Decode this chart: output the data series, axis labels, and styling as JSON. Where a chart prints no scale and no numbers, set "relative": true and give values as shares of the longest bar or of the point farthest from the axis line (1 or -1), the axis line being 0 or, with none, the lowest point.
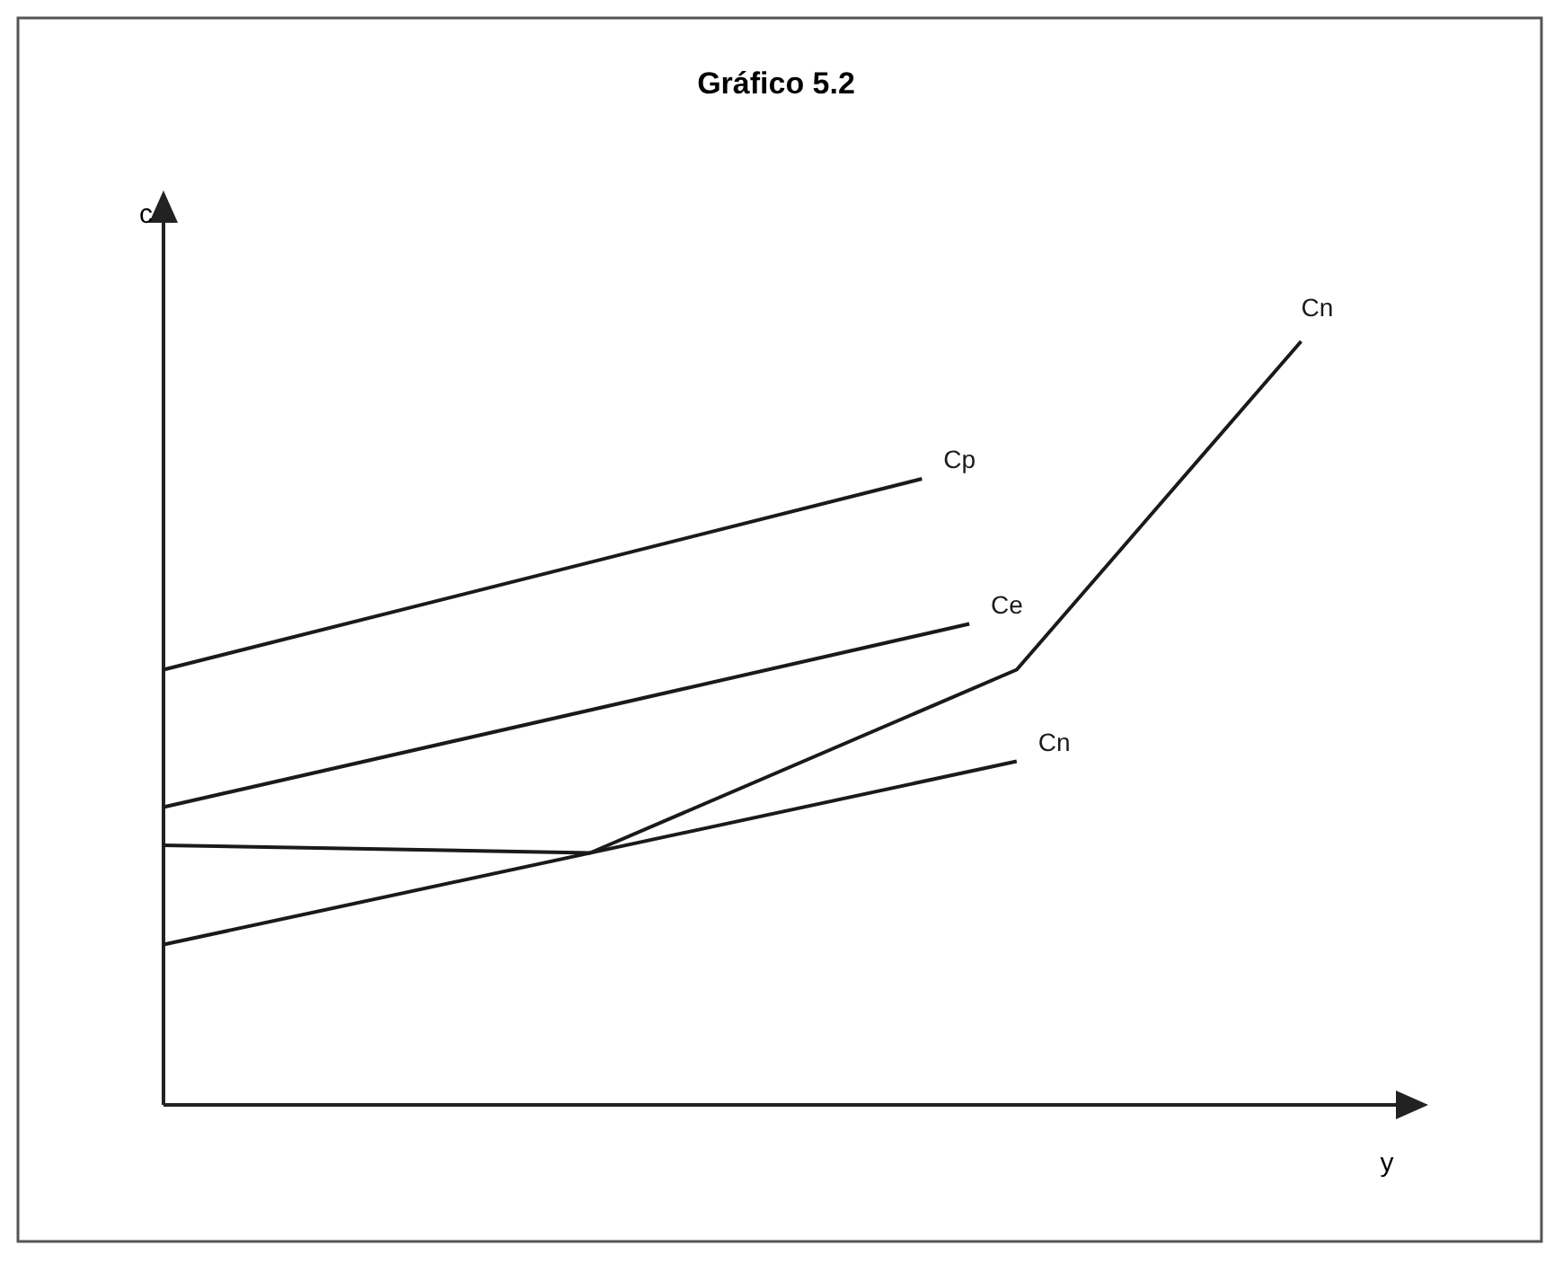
{
  "chart_data": {
    "type": "line",
    "title": "Gráfico 5.2",
    "xlabel": "y",
    "ylabel": "c",
    "relative": true,
    "legend": false,
    "line_style": "solid",
    "categories": [
      null,
      null,
      null,
      null,
      null,
      null,
      null,
      null,
      null,
      null,
      null,
      null,
      null,
      null,
      null,
      null,
      null,
      null,
      null,
      null,
      null,
      null,
      null,
      null,
      null
    ],
    "series": [
      {
        "name": "Cp",
        "color": "#1a1a1a",
        "values": [
          0.57,
          null,
          null,
          null,
          null,
          null,
          null,
          null,
          null,
          null,
          null,
          null,
          null,
          null,
          null,
          null,
          0.82,
          null,
          null,
          null,
          null,
          null,
          null,
          null,
          null
        ]
      },
      {
        "name": "Ce",
        "color": "#1a1a1a",
        "values": [
          0.39,
          null,
          null,
          null,
          null,
          null,
          null,
          null,
          null,
          null,
          null,
          null,
          null,
          null,
          null,
          null,
          null,
          0.63,
          null,
          null,
          null,
          null,
          null,
          null,
          null
        ]
      },
      {
        "name": "Cn",
        "color": "#1a1a1a",
        "values": [
          0.21,
          null,
          null,
          null,
          null,
          null,
          null,
          null,
          null,
          null,
          null,
          null,
          null,
          null,
          null,
          null,
          null,
          null,
          0.45,
          null,
          null,
          null,
          null,
          null,
          null
        ]
      },
      {
        "name": "Cn",
        "color": "#1a1a1a",
        "values": [
          0.34,
          null,
          null,
          null,
          null,
          null,
          null,
          null,
          null,
          0.33,
          null,
          null,
          null,
          null,
          null,
          null,
          null,
          null,
          0.57,
          null,
          null,
          null,
          null,
          null,
          1
        ]
      }
    ]
  }
}
